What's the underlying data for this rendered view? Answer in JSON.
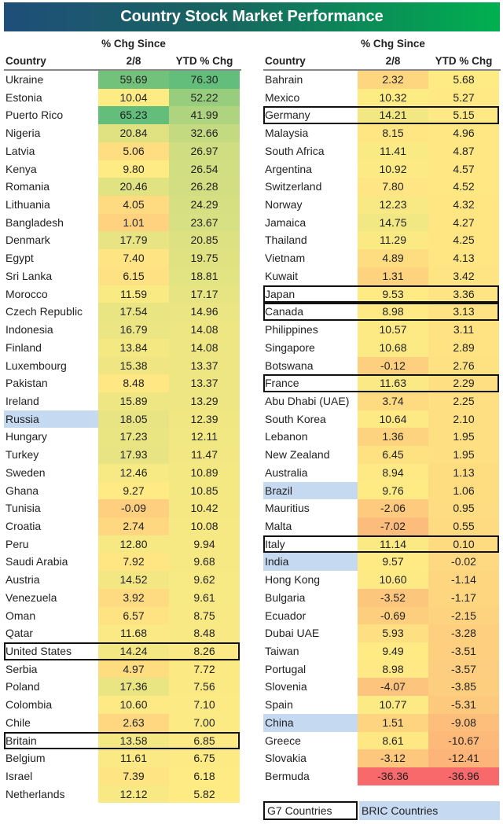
{
  "title": "Country Stock Market Performance",
  "headers": {
    "country": "Country",
    "chg_line1": "% Chg Since",
    "chg_line2": "2/8",
    "ytd": "YTD % Chg"
  },
  "colors": {
    "low": "#f8696b",
    "mid": "#ffeb84",
    "high": "#63be7b",
    "bric": "#c5d9f1",
    "g7_border": "#111111"
  },
  "legend": {
    "g7": "G7 Countries",
    "bric": "BRIC Countries"
  },
  "left_table": [
    {
      "country": "Ukraine",
      "chg_since": "59.69",
      "ytd": "76.30",
      "group": ""
    },
    {
      "country": "Estonia",
      "chg_since": "10.04",
      "ytd": "52.22",
      "group": ""
    },
    {
      "country": "Puerto Rico",
      "chg_since": "65.23",
      "ytd": "41.99",
      "group": ""
    },
    {
      "country": "Nigeria",
      "chg_since": "20.84",
      "ytd": "32.66",
      "group": ""
    },
    {
      "country": "Latvia",
      "chg_since": "5.06",
      "ytd": "26.97",
      "group": ""
    },
    {
      "country": "Kenya",
      "chg_since": "9.80",
      "ytd": "26.54",
      "group": ""
    },
    {
      "country": "Romania",
      "chg_since": "20.46",
      "ytd": "26.28",
      "group": ""
    },
    {
      "country": "Lithuania",
      "chg_since": "4.05",
      "ytd": "24.29",
      "group": ""
    },
    {
      "country": "Bangladesh",
      "chg_since": "1.01",
      "ytd": "23.67",
      "group": ""
    },
    {
      "country": "Denmark",
      "chg_since": "17.79",
      "ytd": "20.85",
      "group": ""
    },
    {
      "country": "Egypt",
      "chg_since": "7.40",
      "ytd": "19.75",
      "group": ""
    },
    {
      "country": "Sri Lanka",
      "chg_since": "6.15",
      "ytd": "18.81",
      "group": ""
    },
    {
      "country": "Morocco",
      "chg_since": "11.59",
      "ytd": "17.17",
      "group": ""
    },
    {
      "country": "Czech Republic",
      "chg_since": "17.54",
      "ytd": "14.96",
      "group": ""
    },
    {
      "country": "Indonesia",
      "chg_since": "16.79",
      "ytd": "14.08",
      "group": ""
    },
    {
      "country": "Finland",
      "chg_since": "13.84",
      "ytd": "14.08",
      "group": ""
    },
    {
      "country": "Luxembourg",
      "chg_since": "15.38",
      "ytd": "13.37",
      "group": ""
    },
    {
      "country": "Pakistan",
      "chg_since": "8.48",
      "ytd": "13.37",
      "group": ""
    },
    {
      "country": "Ireland",
      "chg_since": "15.89",
      "ytd": "13.29",
      "group": ""
    },
    {
      "country": "Russia",
      "chg_since": "18.05",
      "ytd": "12.39",
      "group": "BRIC"
    },
    {
      "country": "Hungary",
      "chg_since": "17.23",
      "ytd": "12.11",
      "group": ""
    },
    {
      "country": "Turkey",
      "chg_since": "17.93",
      "ytd": "11.47",
      "group": ""
    },
    {
      "country": "Sweden",
      "chg_since": "12.46",
      "ytd": "10.89",
      "group": ""
    },
    {
      "country": "Ghana",
      "chg_since": "9.27",
      "ytd": "10.85",
      "group": ""
    },
    {
      "country": "Tunisia",
      "chg_since": "-0.09",
      "ytd": "10.42",
      "group": ""
    },
    {
      "country": "Croatia",
      "chg_since": "2.74",
      "ytd": "10.08",
      "group": ""
    },
    {
      "country": "Peru",
      "chg_since": "12.80",
      "ytd": "9.94",
      "group": ""
    },
    {
      "country": "Saudi Arabia",
      "chg_since": "7.92",
      "ytd": "9.68",
      "group": ""
    },
    {
      "country": "Austria",
      "chg_since": "14.52",
      "ytd": "9.62",
      "group": ""
    },
    {
      "country": "Venezuela",
      "chg_since": "3.92",
      "ytd": "9.61",
      "group": ""
    },
    {
      "country": "Oman",
      "chg_since": "6.57",
      "ytd": "8.75",
      "group": ""
    },
    {
      "country": "Qatar",
      "chg_since": "11.68",
      "ytd": "8.48",
      "group": ""
    },
    {
      "country": "United States",
      "chg_since": "14.24",
      "ytd": "8.26",
      "group": "G7"
    },
    {
      "country": "Serbia",
      "chg_since": "4.97",
      "ytd": "7.72",
      "group": ""
    },
    {
      "country": "Poland",
      "chg_since": "17.36",
      "ytd": "7.56",
      "group": ""
    },
    {
      "country": "Colombia",
      "chg_since": "10.60",
      "ytd": "7.10",
      "group": ""
    },
    {
      "country": "Chile",
      "chg_since": "2.63",
      "ytd": "7.00",
      "group": ""
    },
    {
      "country": "Britain",
      "chg_since": "13.58",
      "ytd": "6.85",
      "group": "G7"
    },
    {
      "country": "Belgium",
      "chg_since": "11.61",
      "ytd": "6.75",
      "group": ""
    },
    {
      "country": "Israel",
      "chg_since": "7.39",
      "ytd": "6.18",
      "group": ""
    },
    {
      "country": "Netherlands",
      "chg_since": "12.12",
      "ytd": "5.82",
      "group": ""
    }
  ],
  "right_table": [
    {
      "country": "Bahrain",
      "chg_since": "2.32",
      "ytd": "5.68",
      "group": ""
    },
    {
      "country": "Mexico",
      "chg_since": "10.32",
      "ytd": "5.27",
      "group": ""
    },
    {
      "country": "Germany",
      "chg_since": "14.21",
      "ytd": "5.15",
      "group": "G7"
    },
    {
      "country": "Malaysia",
      "chg_since": "8.15",
      "ytd": "4.96",
      "group": ""
    },
    {
      "country": "South Africa",
      "chg_since": "11.41",
      "ytd": "4.87",
      "group": ""
    },
    {
      "country": "Argentina",
      "chg_since": "10.92",
      "ytd": "4.57",
      "group": ""
    },
    {
      "country": "Switzerland",
      "chg_since": "7.80",
      "ytd": "4.52",
      "group": ""
    },
    {
      "country": "Norway",
      "chg_since": "12.23",
      "ytd": "4.32",
      "group": ""
    },
    {
      "country": "Jamaica",
      "chg_since": "14.75",
      "ytd": "4.27",
      "group": ""
    },
    {
      "country": "Thailand",
      "chg_since": "11.29",
      "ytd": "4.25",
      "group": ""
    },
    {
      "country": "Vietnam",
      "chg_since": "4.89",
      "ytd": "4.13",
      "group": ""
    },
    {
      "country": "Kuwait",
      "chg_since": "1.31",
      "ytd": "3.42",
      "group": ""
    },
    {
      "country": "Japan",
      "chg_since": "9.53",
      "ytd": "3.36",
      "group": "G7"
    },
    {
      "country": "Canada",
      "chg_since": "8.98",
      "ytd": "3.13",
      "group": "G7"
    },
    {
      "country": "Philippines",
      "chg_since": "10.57",
      "ytd": "3.11",
      "group": ""
    },
    {
      "country": "Singapore",
      "chg_since": "10.68",
      "ytd": "2.89",
      "group": ""
    },
    {
      "country": "Botswana",
      "chg_since": "-0.12",
      "ytd": "2.76",
      "group": ""
    },
    {
      "country": "France",
      "chg_since": "11.63",
      "ytd": "2.29",
      "group": "G7"
    },
    {
      "country": "Abu Dhabi (UAE)",
      "chg_since": "3.74",
      "ytd": "2.25",
      "group": ""
    },
    {
      "country": "South Korea",
      "chg_since": "10.64",
      "ytd": "2.10",
      "group": ""
    },
    {
      "country": "Lebanon",
      "chg_since": "1.36",
      "ytd": "1.95",
      "group": ""
    },
    {
      "country": "New Zealand",
      "chg_since": "6.45",
      "ytd": "1.95",
      "group": ""
    },
    {
      "country": "Australia",
      "chg_since": "8.94",
      "ytd": "1.13",
      "group": ""
    },
    {
      "country": "Brazil",
      "chg_since": "9.76",
      "ytd": "1.06",
      "group": "BRIC"
    },
    {
      "country": "Mauritius",
      "chg_since": "-2.06",
      "ytd": "0.95",
      "group": ""
    },
    {
      "country": "Malta",
      "chg_since": "-7.02",
      "ytd": "0.55",
      "group": ""
    },
    {
      "country": "Italy",
      "chg_since": "11.14",
      "ytd": "0.10",
      "group": "G7"
    },
    {
      "country": "India",
      "chg_since": "9.57",
      "ytd": "-0.02",
      "group": "BRIC"
    },
    {
      "country": "Hong Kong",
      "chg_since": "10.60",
      "ytd": "-1.14",
      "group": ""
    },
    {
      "country": "Bulgaria",
      "chg_since": "-3.52",
      "ytd": "-1.17",
      "group": ""
    },
    {
      "country": "Ecuador",
      "chg_since": "-0.69",
      "ytd": "-2.15",
      "group": ""
    },
    {
      "country": "Dubai UAE",
      "chg_since": "5.93",
      "ytd": "-3.28",
      "group": ""
    },
    {
      "country": "Taiwan",
      "chg_since": "9.49",
      "ytd": "-3.51",
      "group": ""
    },
    {
      "country": "Portugal",
      "chg_since": "8.98",
      "ytd": "-3.57",
      "group": ""
    },
    {
      "country": "Slovenia",
      "chg_since": "-4.07",
      "ytd": "-3.85",
      "group": ""
    },
    {
      "country": "Spain",
      "chg_since": "10.77",
      "ytd": "-5.31",
      "group": ""
    },
    {
      "country": "China",
      "chg_since": "1.51",
      "ytd": "-9.08",
      "group": "BRIC"
    },
    {
      "country": "Greece",
      "chg_since": "8.61",
      "ytd": "-10.67",
      "group": ""
    },
    {
      "country": "Slovakia",
      "chg_since": "-3.12",
      "ytd": "-12.41",
      "group": ""
    },
    {
      "country": "Bermuda",
      "chg_since": "-36.36",
      "ytd": "-36.96",
      "group": ""
    }
  ]
}
